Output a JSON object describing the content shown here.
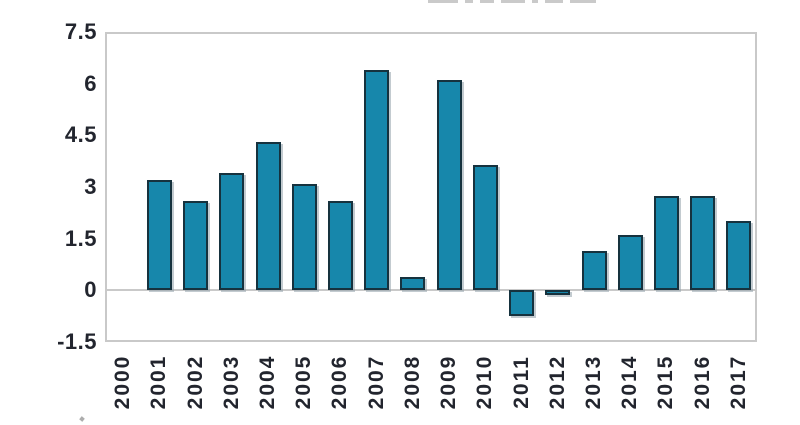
{
  "chart_data": {
    "type": "bar",
    "title": "",
    "title_note": "title cropped out of frame; only bottom sliver of glyphs visible at top center",
    "categories": [
      "2000",
      "2001",
      "2002",
      "2003",
      "2004",
      "2005",
      "2006",
      "2007",
      "2008",
      "2009",
      "2010",
      "2011",
      "2012",
      "2013",
      "2014",
      "2015",
      "2016",
      "2017"
    ],
    "values": [
      0,
      3.2,
      2.6,
      3.4,
      4.3,
      3.1,
      2.6,
      6.4,
      0.4,
      6.1,
      3.65,
      -0.75,
      -0.15,
      1.15,
      1.6,
      2.75,
      2.75,
      2.0
    ],
    "xlabel": "",
    "ylabel": "",
    "ylim": [
      -1.5,
      7.5
    ],
    "y_ticks": [
      7.5,
      6,
      4.5,
      3,
      1.5,
      0,
      -1.5
    ],
    "y_tick_labels": [
      "7.5",
      "6",
      "4.5",
      "3",
      "1.5",
      "0",
      "-1.5"
    ],
    "x_tick_labels_rotation": -90,
    "grid": false,
    "legend": false,
    "colors": {
      "bar_fill": "#1787ab",
      "bar_border": "#16323e",
      "bar_shadow": "#91a0aa",
      "plot_border": "#c9c9c9",
      "zero_line": "#c9c9c9",
      "tick_text": "#22252e",
      "background": "#ffffff"
    }
  }
}
